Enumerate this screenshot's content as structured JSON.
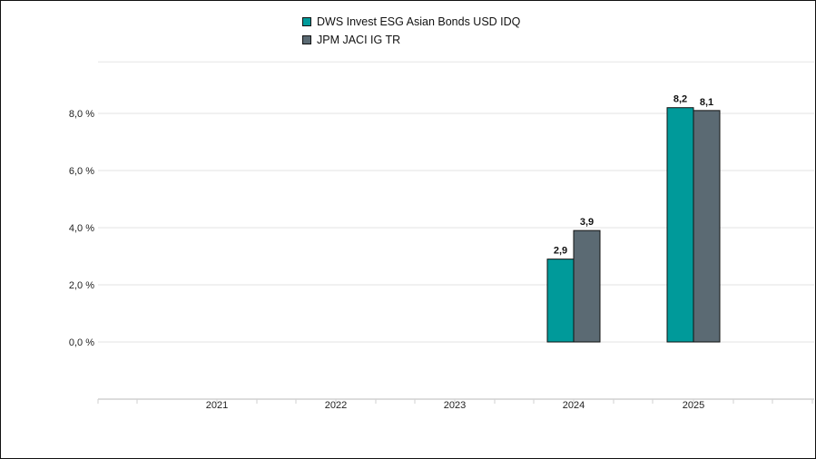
{
  "chart_data": {
    "type": "bar",
    "categories": [
      "2021",
      "2022",
      "2023",
      "2024",
      "2025"
    ],
    "series": [
      {
        "name": "DWS Invest ESG Asian Bonds USD IDQ",
        "color": "#009a9a",
        "values": [
          null,
          null,
          null,
          2.9,
          8.2
        ],
        "labels": [
          "",
          "",
          "",
          "2,9",
          "8,2"
        ]
      },
      {
        "name": "JPM JACI IG TR",
        "color": "#5b6a73",
        "values": [
          null,
          null,
          null,
          3.9,
          8.1
        ],
        "labels": [
          "",
          "",
          "",
          "3,9",
          "8,1"
        ]
      }
    ],
    "yticks": [
      0,
      2,
      4,
      6,
      8
    ],
    "ytick_labels": [
      "0,0 %",
      "2,0 %",
      "4,0 %",
      "6,0 %",
      "8,0 %"
    ],
    "ylim": [
      -2,
      10
    ],
    "title": "",
    "xlabel": "",
    "ylabel": "",
    "grid": true,
    "legend_position": "top-center"
  }
}
